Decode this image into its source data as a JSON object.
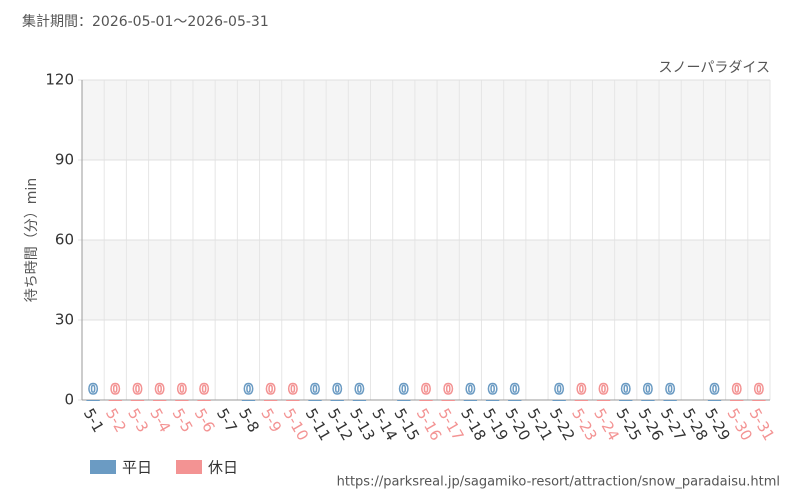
{
  "chart_data": {
    "type": "bar",
    "subtitle": "集計期間：2026-05-01～2026-05-31",
    "title": "スノーパラダイス",
    "y_label": "待ち時間（分）min",
    "source": "https://parksreal.jp/sagamiko-resort/attraction/snow_paradaisu.html",
    "categories": [
      "5-1",
      "5-2",
      "5-3",
      "5-4",
      "5-5",
      "5-6",
      "5-7",
      "5-8",
      "5-9",
      "5-10",
      "5-11",
      "5-12",
      "5-13",
      "5-14",
      "5-15",
      "5-16",
      "5-17",
      "5-18",
      "5-19",
      "5-20",
      "5-21",
      "5-22",
      "5-23",
      "5-24",
      "5-25",
      "5-26",
      "5-27",
      "5-28",
      "5-29",
      "5-30",
      "5-31"
    ],
    "series": [
      {
        "name": "平日",
        "color": "#6b9bc3",
        "values": [
          0,
          null,
          null,
          null,
          null,
          null,
          null,
          0,
          null,
          null,
          0,
          0,
          0,
          null,
          0,
          null,
          null,
          0,
          0,
          0,
          null,
          0,
          null,
          null,
          0,
          0,
          0,
          null,
          0,
          null,
          null
        ]
      },
      {
        "name": "休日",
        "color": "#f39393",
        "values": [
          null,
          0,
          0,
          0,
          0,
          0,
          null,
          null,
          0,
          0,
          null,
          null,
          null,
          null,
          null,
          0,
          0,
          null,
          null,
          null,
          null,
          null,
          0,
          0,
          null,
          null,
          null,
          null,
          null,
          0,
          0
        ]
      }
    ],
    "ylim": [
      0,
      120
    ],
    "yticks": [
      0,
      30,
      60,
      90,
      120
    ],
    "grid": true
  }
}
